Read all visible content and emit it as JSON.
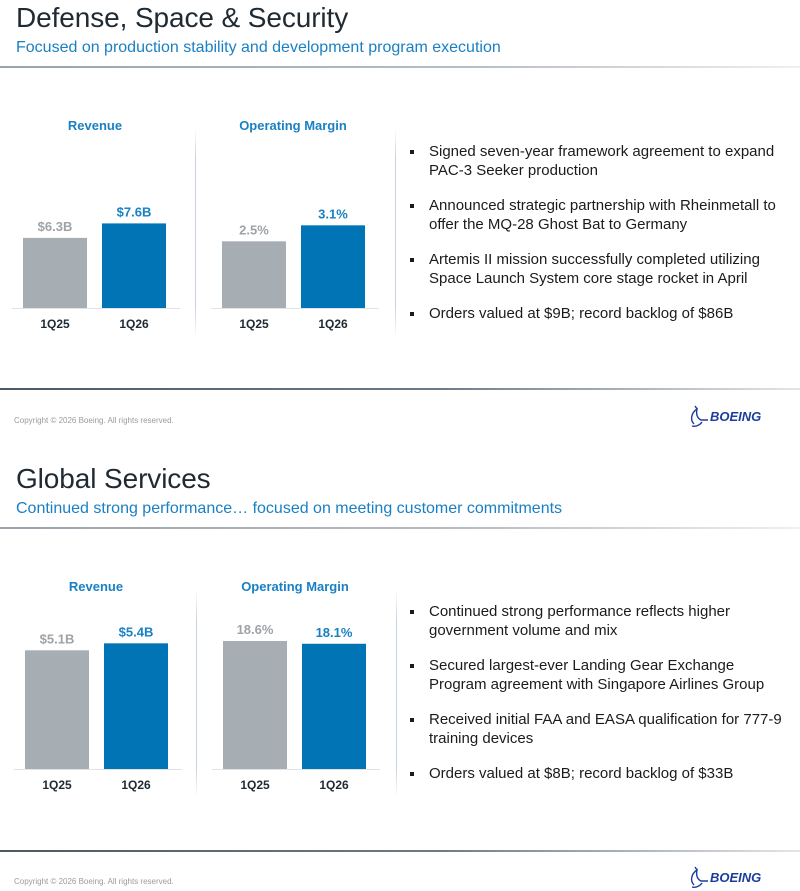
{
  "colors": {
    "accent": "#1a80c4",
    "bar_prior": "#a6adb3",
    "bar_current": "#0074b5",
    "label_prior": "#9ea3a8",
    "axis": "#1f2a33"
  },
  "footer": {
    "copyright": "Copyright © 2026 Boeing. All rights reserved.",
    "logo_text": "BOEING",
    "logo_icon": "boeing-logo-icon"
  },
  "slides": [
    {
      "title": "Defense, Space & Security",
      "subtitle": "Focused on production stability and development program execution",
      "bullets": [
        "Signed seven-year framework agreement to expand PAC-3 Seeker production",
        "Announced strategic partnership with Rheinmetall to offer the MQ-28 Ghost Bat to Germany",
        "Artemis II mission successfully completed utilizing Space Launch System core stage rocket in April",
        "Orders valued at $9B; record backlog of $86B"
      ]
    },
    {
      "title": "Global Services",
      "subtitle": "Continued strong performance… focused on meeting customer commitments",
      "bullets": [
        "Continued strong performance reflects higher government volume and mix",
        "Secured largest-ever Landing Gear Exchange Program agreement with Singapore Airlines Group",
        "Received initial FAA and EASA qualification for 777-9 training devices",
        "Orders valued at $8B; record backlog of $33B"
      ]
    }
  ],
  "chart_data": [
    {
      "type": "bar",
      "title": "Revenue",
      "section": "Defense, Space & Security",
      "categories": [
        "1Q25",
        "1Q26"
      ],
      "values": [
        6.3,
        7.6
      ],
      "unit": "$B",
      "data_labels": [
        "$6.3B",
        "$7.6B"
      ],
      "ylim": [
        0,
        11.5
      ],
      "grid": false,
      "xlabel": "",
      "ylabel": ""
    },
    {
      "type": "bar",
      "title": "Operating Margin",
      "section": "Defense, Space & Security",
      "categories": [
        "1Q25",
        "1Q26"
      ],
      "values": [
        2.5,
        3.1
      ],
      "unit": "%",
      "data_labels": [
        "2.5%",
        "3.1%"
      ],
      "ylim": [
        0,
        4.8
      ],
      "grid": false,
      "xlabel": "",
      "ylabel": ""
    },
    {
      "type": "bar",
      "title": "Revenue",
      "section": "Global Services",
      "categories": [
        "1Q25",
        "1Q26"
      ],
      "values": [
        5.1,
        5.4
      ],
      "unit": "$B",
      "data_labels": [
        "$5.1B",
        "$5.4B"
      ],
      "ylim": [
        0,
        5.5
      ],
      "grid": false,
      "xlabel": "",
      "ylabel": ""
    },
    {
      "type": "bar",
      "title": "Operating Margin",
      "section": "Global Services",
      "categories": [
        "1Q25",
        "1Q26"
      ],
      "values": [
        18.6,
        18.1
      ],
      "unit": "%",
      "data_labels": [
        "18.6%",
        "18.1%"
      ],
      "ylim": [
        0,
        18.5
      ],
      "grid": false,
      "xlabel": "",
      "ylabel": ""
    }
  ]
}
